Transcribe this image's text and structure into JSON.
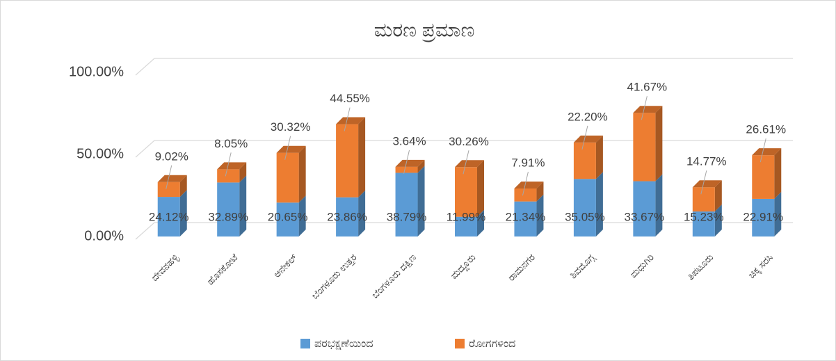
{
  "chart_data": {
    "type": "bar3d_stacked",
    "title": "ಮರಣ ಪ್ರಮಾಣ",
    "categories": [
      "ದೇವನಹಳ್ಳಿ",
      "ಹೊಸಕೋಟೆ",
      "ಆನೇಕಲ್",
      "ಬೆಂಗಳೂರು ಉತ್ತರ",
      "ಬೆಂಗಳೂರು ದಕ್ಷಿಣ",
      "ಮದ್ದೂರು",
      "ರಾಮನಗರ",
      "ಶಿವಮೊಗ್ಗ",
      "ಮಧುಗಿರಿ",
      "ತಿಪಟೂರು",
      "ಚಿಕ್ಕ ಸರಸಿ"
    ],
    "series": [
      {
        "name": "ಪರಭಕ್ಷಣೆಯಿಂದ",
        "color": "#5b9bd5",
        "values": [
          24.12,
          32.89,
          20.65,
          23.86,
          38.79,
          11.99,
          21.34,
          35.05,
          33.67,
          15.23,
          22.91
        ],
        "value_labels": [
          "24.12%",
          "32.89%",
          "20.65%",
          "23.86%",
          "38.79%",
          "11.99%",
          "21.34%",
          "35.05%",
          "33.67%",
          "15.23%",
          "22.91%"
        ]
      },
      {
        "name": "ರೋಗಗಳಿಂದ",
        "color": "#ed7d31",
        "values": [
          9.02,
          8.05,
          30.32,
          44.55,
          3.64,
          30.26,
          7.91,
          22.2,
          41.67,
          14.77,
          26.61
        ],
        "value_labels": [
          "9.02%",
          "8.05%",
          "30.32%",
          "44.55%",
          "3.64%",
          "30.26%",
          "7.91%",
          "22.20%",
          "41.67%",
          "14.77%",
          "26.61%"
        ]
      }
    ],
    "ylim": [
      0,
      100
    ],
    "yticks": [
      {
        "value": 0,
        "label": "0.00%"
      },
      {
        "value": 50,
        "label": "50.00%"
      },
      {
        "value": 100,
        "label": "100.00%"
      }
    ],
    "grid": true,
    "legend": "bottom"
  }
}
